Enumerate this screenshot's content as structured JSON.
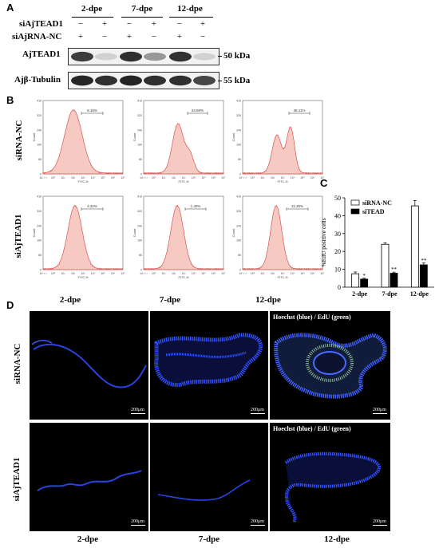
{
  "panelA": {
    "letter": "A",
    "groups": [
      "2-dpe",
      "7-dpe",
      "12-dpe"
    ],
    "row_labels": [
      "siAjTEAD1",
      "siAjRNA-NC"
    ],
    "row1_signs": [
      "−",
      "+",
      "−",
      "+",
      "−",
      "+"
    ],
    "row2_signs": [
      "+",
      "−",
      "+",
      "−",
      "+",
      "−"
    ],
    "blots": [
      {
        "label": "AjTEAD1",
        "kda": "50 kDa",
        "intensities": [
          0.85,
          0.2,
          0.9,
          0.45,
          0.9,
          0.2
        ]
      },
      {
        "label": "Ajβ-Tubulin",
        "kda": "55 kDa",
        "intensities": [
          0.95,
          0.9,
          0.95,
          0.9,
          0.9,
          0.8
        ]
      }
    ]
  },
  "panelB": {
    "letter": "B",
    "row_labels": [
      "siRNA-NC",
      "siAjTEAD1"
    ],
    "col_labels": [
      "2-dpe",
      "7-dpe",
      "12-dpe"
    ],
    "axis_x": "FITC-H",
    "axis_y": "Count",
    "percents": [
      [
        "8.15%",
        "24.60%",
        "46.11%"
      ],
      [
        "4.32%",
        "1.40%",
        "11.25%"
      ]
    ]
  },
  "panelC": {
    "letter": "C",
    "chart_data": {
      "type": "bar",
      "categories": [
        "2-dpe",
        "7-dpe",
        "12-dpe"
      ],
      "series": [
        {
          "name": "siRNA-NC",
          "values": [
            7.5,
            24,
            45.5
          ],
          "errors": [
            1,
            0.8,
            3
          ],
          "color": "#ffffff"
        },
        {
          "name": "siTEAD",
          "values": [
            4.5,
            7.8,
            12.5
          ],
          "errors": [
            0.5,
            0.6,
            1
          ],
          "color": "#000000"
        }
      ],
      "significance": [
        "*",
        "**",
        "**"
      ],
      "ylabel": "%EdU positive cells",
      "ylim": [
        0,
        50
      ],
      "yticks": [
        "0",
        "10",
        "20",
        "30",
        "40",
        "50"
      ],
      "legend_position": "top-left"
    }
  },
  "panelD": {
    "letter": "D",
    "row_labels": [
      "siRNA-NC",
      "siAjTEAD1"
    ],
    "col_labels": [
      "2-dpe",
      "7-dpe",
      "12-dpe"
    ],
    "overlay_title": "Hoechst (blue) / EdU (green)",
    "scale": "200μm"
  }
}
